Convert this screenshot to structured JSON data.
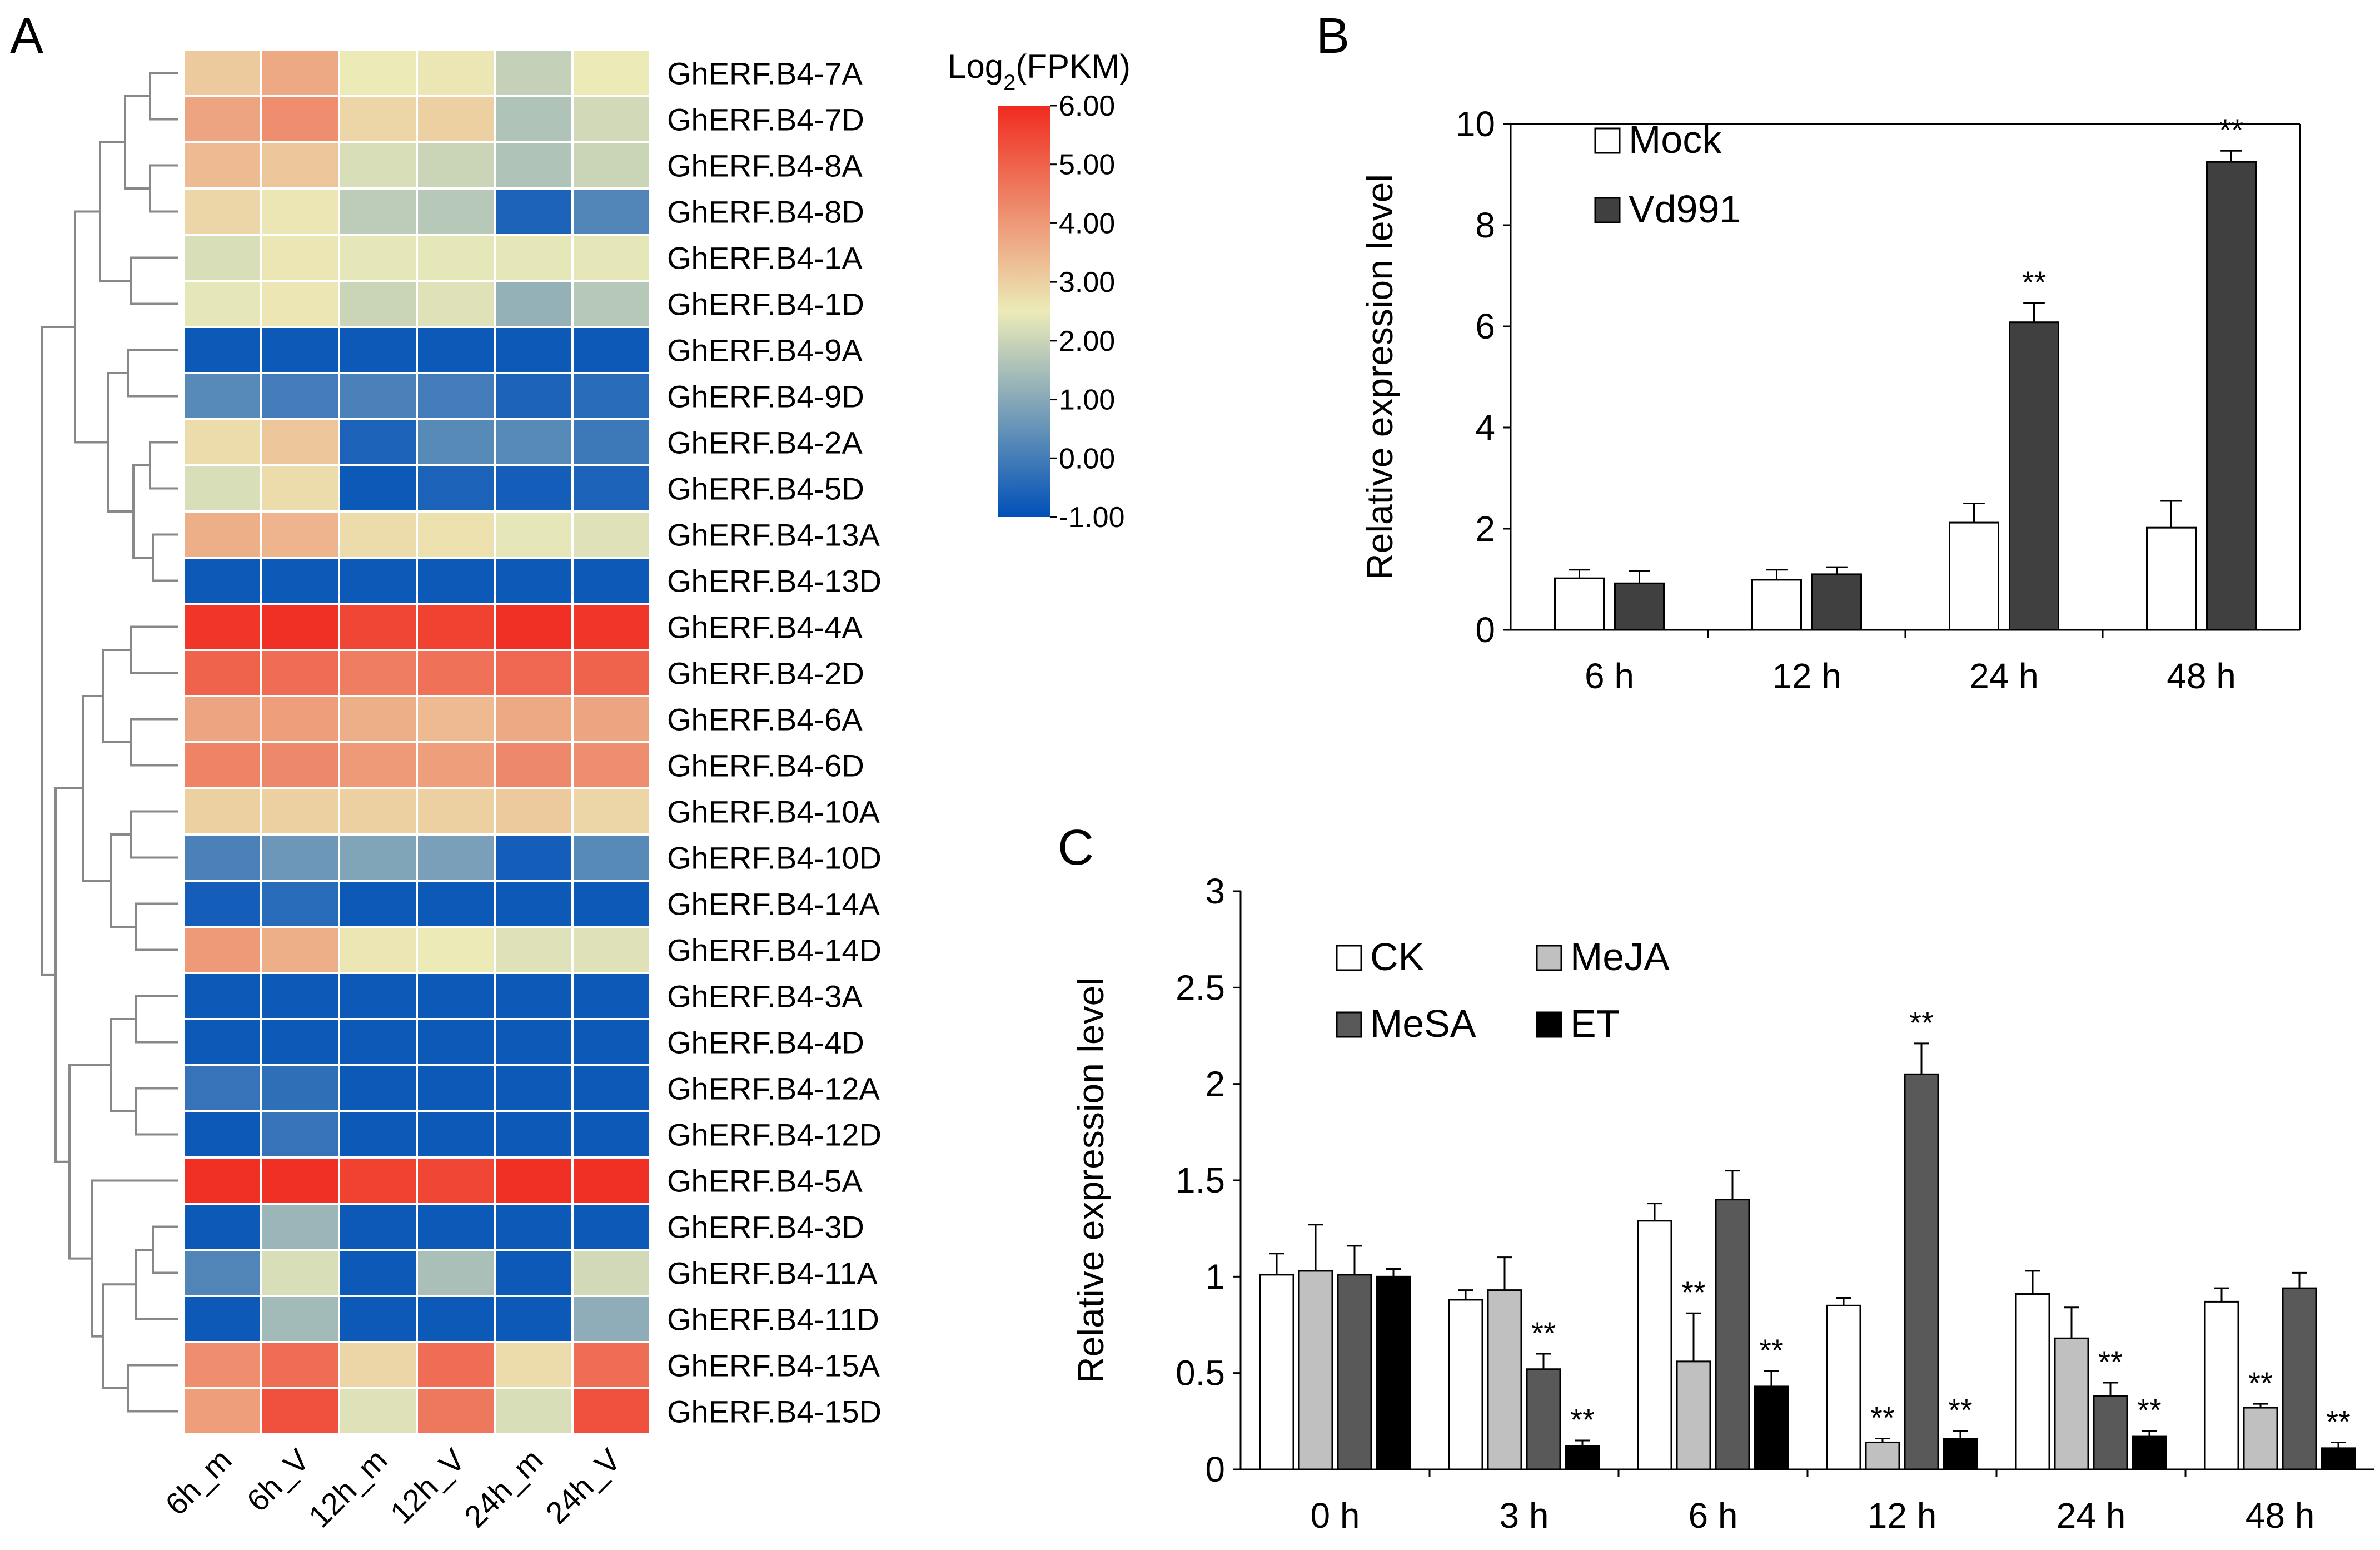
{
  "panels": {
    "a": "A",
    "b": "B",
    "c": "C"
  },
  "chart_data": [
    {
      "panel": "A",
      "type": "heatmap",
      "title": "",
      "colorbar_title_prefix": "Log",
      "colorbar_title_sub": "2",
      "colorbar_title_suffix": "(FPKM)",
      "colorbar_range": [
        -1,
        6
      ],
      "colorbar_ticks": [
        "6.00",
        "5.00",
        "4.00",
        "3.00",
        "2.00",
        "1.00",
        "0.00",
        "-1.00"
      ],
      "colors": {
        "low": "#0050b8",
        "mid": "#ecebb8",
        "high": "#f02b20",
        "grid": "#ffffff"
      },
      "columns": [
        "6h_m",
        "6h_V",
        "12h_m",
        "12h_V",
        "24h_m",
        "24h_V"
      ],
      "rows": [
        {
          "gene": "GhERF.B4-7A",
          "values": [
            3.1,
            3.7,
            2.5,
            2.6,
            1.9,
            2.5
          ]
        },
        {
          "gene": "GhERF.B4-7D",
          "values": [
            3.8,
            4.2,
            2.9,
            3.0,
            1.6,
            2.1
          ]
        },
        {
          "gene": "GhERF.B4-8A",
          "values": [
            3.4,
            3.2,
            2.2,
            2.0,
            1.6,
            2.0
          ]
        },
        {
          "gene": "GhERF.B4-8D",
          "values": [
            2.9,
            2.6,
            1.8,
            1.7,
            -0.6,
            0.2
          ]
        },
        {
          "gene": "GhERF.B4-1A",
          "values": [
            2.2,
            2.6,
            2.4,
            2.4,
            2.4,
            2.4
          ]
        },
        {
          "gene": "GhERF.B4-1D",
          "values": [
            2.4,
            2.6,
            2.0,
            2.3,
            1.2,
            1.7
          ]
        },
        {
          "gene": "GhERF.B4-9A",
          "values": [
            -0.8,
            -0.8,
            -0.8,
            -0.8,
            -0.8,
            -0.8
          ]
        },
        {
          "gene": "GhERF.B4-9D",
          "values": [
            0.3,
            0.0,
            0.1,
            0.0,
            -0.6,
            -0.4
          ]
        },
        {
          "gene": "GhERF.B4-2A",
          "values": [
            2.8,
            3.2,
            -0.6,
            0.3,
            0.3,
            -0.1
          ]
        },
        {
          "gene": "GhERF.B4-5D",
          "values": [
            2.2,
            2.8,
            -0.8,
            -0.6,
            -0.7,
            -0.6
          ]
        },
        {
          "gene": "GhERF.B4-13A",
          "values": [
            3.6,
            3.5,
            2.8,
            2.7,
            2.4,
            2.3
          ]
        },
        {
          "gene": "GhERF.B4-13D",
          "values": [
            -0.8,
            -0.8,
            -0.8,
            -0.8,
            -0.8,
            -0.8
          ]
        },
        {
          "gene": "GhERF.B4-4A",
          "values": [
            5.8,
            5.9,
            5.5,
            5.6,
            5.9,
            5.8
          ]
        },
        {
          "gene": "GhERF.B4-2D",
          "values": [
            5.0,
            4.8,
            4.5,
            4.7,
            4.9,
            5.0
          ]
        },
        {
          "gene": "GhERF.B4-6A",
          "values": [
            3.8,
            3.9,
            3.6,
            3.4,
            3.7,
            3.8
          ]
        },
        {
          "gene": "GhERF.B4-6D",
          "values": [
            4.4,
            4.3,
            4.0,
            3.9,
            4.3,
            4.2
          ]
        },
        {
          "gene": "GhERF.B4-10A",
          "values": [
            3.0,
            3.0,
            3.0,
            3.0,
            3.1,
            2.9
          ]
        },
        {
          "gene": "GhERF.B4-10D",
          "values": [
            0.1,
            0.6,
            0.9,
            0.8,
            -0.7,
            0.3
          ]
        },
        {
          "gene": "GhERF.B4-14A",
          "values": [
            -0.7,
            -0.4,
            -0.8,
            -0.8,
            -0.8,
            -0.8
          ]
        },
        {
          "gene": "GhERF.B4-14D",
          "values": [
            4.0,
            3.6,
            2.6,
            2.5,
            2.3,
            2.3
          ]
        },
        {
          "gene": "GhERF.B4-3A",
          "values": [
            -0.8,
            -0.8,
            -0.8,
            -0.8,
            -0.8,
            -0.8
          ]
        },
        {
          "gene": "GhERF.B4-4D",
          "values": [
            -0.8,
            -0.8,
            -0.8,
            -0.8,
            -0.8,
            -0.8
          ]
        },
        {
          "gene": "GhERF.B4-12A",
          "values": [
            -0.2,
            -0.3,
            -0.8,
            -0.8,
            -0.8,
            -0.8
          ]
        },
        {
          "gene": "GhERF.B4-12D",
          "values": [
            -0.8,
            -0.2,
            -0.8,
            -0.8,
            -0.8,
            -0.8
          ]
        },
        {
          "gene": "GhERF.B4-5A",
          "values": [
            5.9,
            5.9,
            5.6,
            5.5,
            5.9,
            5.9
          ]
        },
        {
          "gene": "GhERF.B4-3D",
          "values": [
            -0.8,
            1.3,
            -0.8,
            -0.8,
            -0.8,
            -0.8
          ]
        },
        {
          "gene": "GhERF.B4-11A",
          "values": [
            0.2,
            2.2,
            -0.8,
            1.5,
            -0.8,
            2.1
          ]
        },
        {
          "gene": "GhERF.B4-11D",
          "values": [
            -0.8,
            1.4,
            -0.8,
            -0.8,
            -0.8,
            1.1
          ]
        },
        {
          "gene": "GhERF.B4-15A",
          "values": [
            4.2,
            4.8,
            2.9,
            4.8,
            2.8,
            4.8
          ]
        },
        {
          "gene": "GhERF.B4-15D",
          "values": [
            3.9,
            5.3,
            2.3,
            4.6,
            2.2,
            5.3
          ]
        }
      ]
    },
    {
      "panel": "B",
      "type": "bar",
      "title": "",
      "xlabel": "",
      "ylabel": "Relative expression level",
      "ylim": [
        0,
        10
      ],
      "yticks": [
        0,
        2,
        4,
        6,
        8,
        10
      ],
      "categories": [
        "6 h",
        "12 h",
        "24 h",
        "48 h"
      ],
      "series": [
        {
          "name": "Mock",
          "color": "#ffffff",
          "values": [
            1.02,
            0.99,
            2.12,
            2.02
          ],
          "errors": [
            0.17,
            0.2,
            0.38,
            0.53
          ],
          "sig": [
            "",
            "",
            "",
            ""
          ]
        },
        {
          "name": "Vd991",
          "color": "#404040",
          "values": [
            0.92,
            1.1,
            6.08,
            9.25
          ],
          "errors": [
            0.24,
            0.14,
            0.38,
            0.22
          ],
          "sig": [
            "",
            "",
            "**",
            "**"
          ]
        }
      ]
    },
    {
      "panel": "C",
      "type": "bar",
      "title": "",
      "xlabel": "",
      "ylabel": "Relative expression level",
      "ylim": [
        0,
        3
      ],
      "yticks": [
        "0",
        "0.5",
        "1",
        "1.5",
        "2",
        "2.5",
        "3"
      ],
      "categories": [
        "0 h",
        "3 h",
        "6 h",
        "12 h",
        "24 h",
        "48 h"
      ],
      "series": [
        {
          "name": "CK",
          "color": "#ffffff",
          "values": [
            1.01,
            0.88,
            1.29,
            0.85,
            0.91,
            0.87
          ],
          "errors": [
            0.11,
            0.05,
            0.09,
            0.04,
            0.12,
            0.07
          ],
          "sig": [
            "",
            "",
            "",
            "",
            "",
            ""
          ]
        },
        {
          "name": "MeJA",
          "color": "#c0c0c0",
          "values": [
            1.03,
            0.93,
            0.56,
            0.14,
            0.68,
            0.32
          ],
          "errors": [
            0.24,
            0.17,
            0.25,
            0.02,
            0.16,
            0.02
          ],
          "sig": [
            "",
            "",
            "**",
            "**",
            "",
            "**"
          ]
        },
        {
          "name": "MeSA",
          "color": "#595959",
          "values": [
            1.01,
            0.52,
            1.4,
            2.05,
            0.38,
            0.94
          ],
          "errors": [
            0.15,
            0.08,
            0.15,
            0.16,
            0.07,
            0.08
          ],
          "sig": [
            "",
            "**",
            "",
            "**",
            "**",
            ""
          ]
        },
        {
          "name": "ET",
          "color": "#000000",
          "values": [
            1.0,
            0.12,
            0.43,
            0.16,
            0.17,
            0.11
          ],
          "errors": [
            0.04,
            0.03,
            0.08,
            0.04,
            0.03,
            0.03
          ],
          "sig": [
            "",
            "**",
            "**",
            "**",
            "**",
            "**"
          ]
        }
      ]
    }
  ]
}
